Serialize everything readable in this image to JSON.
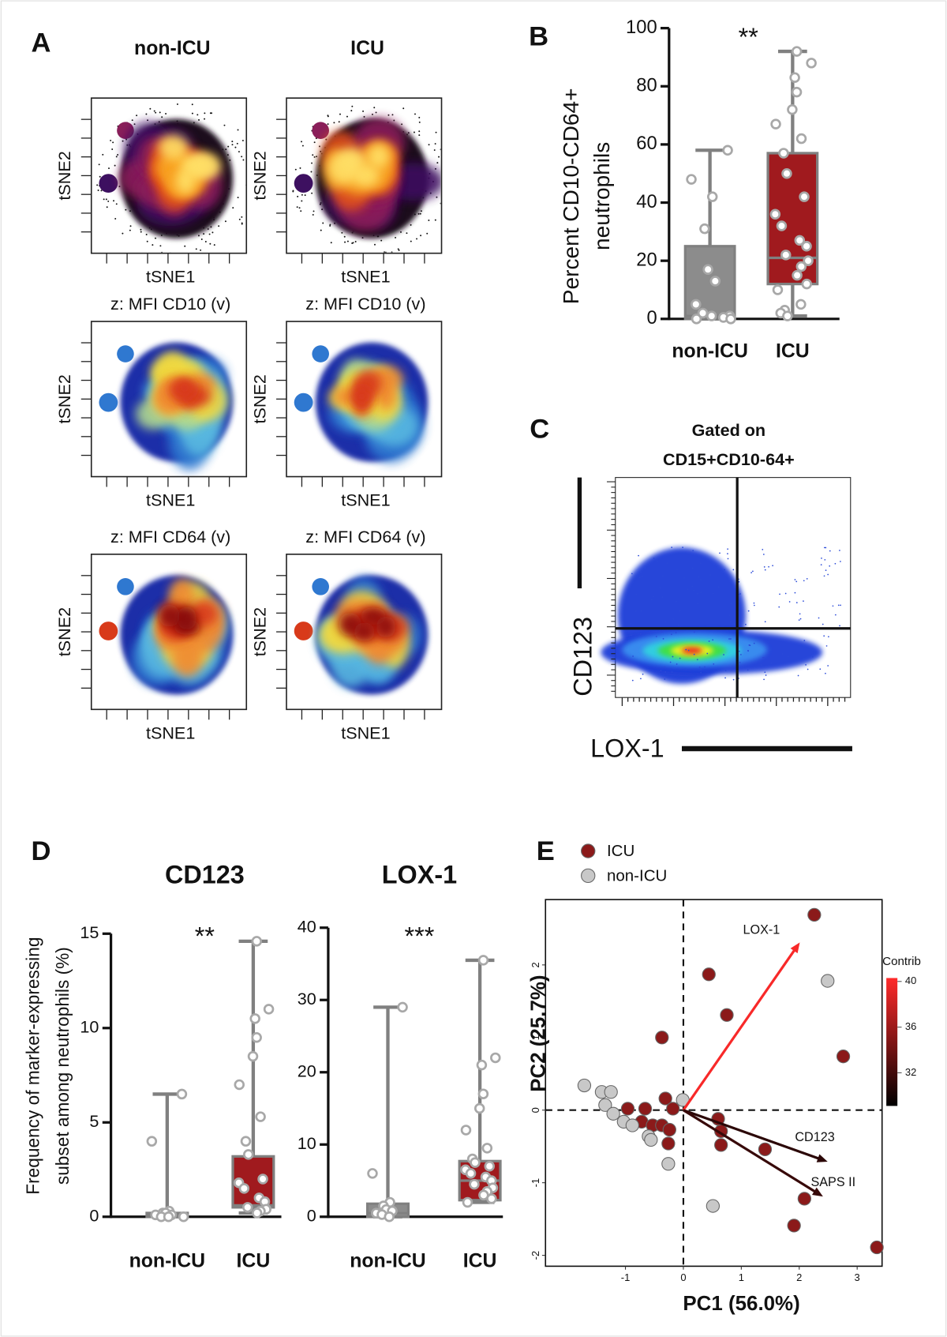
{
  "tsne": {
    "panel": "A",
    "columns": [
      "non-ICU",
      "ICU"
    ],
    "subtitles": [
      "z: MFI CD10 (v)",
      "z: MFI CD64 (v)"
    ],
    "xlabel": "tSNE1",
    "ylabel": "tSNE2"
  },
  "flow": {
    "panel": "C",
    "gate": [
      "Gated on",
      "CD15+CD10-64+"
    ],
    "ylabel": "CD123",
    "xlabel": "LOX-1"
  },
  "chart_data": [
    {
      "type": "box",
      "panel": "B",
      "ylabel": [
        "Percent CD10-CD64+",
        "neutrophils"
      ],
      "annotation": "**",
      "ylim": [
        0,
        100
      ],
      "yticks": [
        0,
        20,
        40,
        60,
        80,
        100
      ],
      "groups": [
        {
          "name": "non-ICU",
          "color": "#8c8c8c",
          "min": 0,
          "q1": 0,
          "median": 1,
          "q3": 25,
          "max": 58,
          "points": [
            58,
            48,
            42,
            31,
            17,
            13,
            5,
            2,
            1,
            1,
            0.5,
            0,
            0
          ]
        },
        {
          "name": "ICU",
          "color": "#a01a1e",
          "min": 1,
          "q1": 12,
          "median": 21,
          "q3": 57,
          "max": 92,
          "points": [
            92,
            88,
            83,
            78,
            72,
            67,
            62,
            57,
            50,
            42,
            36,
            32,
            27,
            25,
            22,
            20,
            18,
            15,
            12,
            10,
            5,
            3,
            2,
            1
          ]
        }
      ]
    },
    {
      "type": "box",
      "panel": "D",
      "title": "CD123",
      "ylabel": [
        "Frequency of marker-expressing",
        "subset among neutrophils (%)"
      ],
      "annotation": "**",
      "ylim": [
        0,
        15
      ],
      "yticks": [
        0,
        5,
        10,
        15
      ],
      "groups": [
        {
          "name": "non-ICU",
          "color": "#8c8c8c",
          "min": 0,
          "q1": 0,
          "median": 0.1,
          "q3": 0.2,
          "max": 6.5,
          "points": [
            6.5,
            4,
            0.3,
            0.2,
            0.2,
            0.1,
            0.1,
            0,
            0,
            0
          ]
        },
        {
          "name": "ICU",
          "color": "#a01a1e",
          "min": 0.2,
          "q1": 0.5,
          "median": 0.6,
          "q3": 3.2,
          "max": 14.6,
          "points": [
            14.6,
            11,
            10.5,
            9.5,
            8.5,
            7,
            5.3,
            4,
            3.3,
            2,
            1.8,
            1.5,
            1,
            0.8,
            0.5,
            0.4,
            0.3,
            0.2
          ]
        }
      ]
    },
    {
      "type": "box",
      "title": "LOX-1",
      "annotation": "***",
      "ylim": [
        0,
        40
      ],
      "yticks": [
        0,
        10,
        20,
        30,
        40
      ],
      "groups": [
        {
          "name": "non-ICU",
          "color": "#8c8c8c",
          "min": 0,
          "q1": 0,
          "median": 0.5,
          "q3": 1.8,
          "max": 29,
          "points": [
            29,
            6,
            2,
            1.5,
            1,
            0.8,
            0.5,
            0.3,
            0
          ]
        },
        {
          "name": "ICU",
          "color": "#a01a1e",
          "min": 2,
          "q1": 2.3,
          "median": 5,
          "q3": 7.7,
          "max": 35.5,
          "points": [
            35.5,
            22,
            21,
            17,
            15,
            12,
            9.5,
            8,
            7.5,
            7,
            6.5,
            6,
            5.5,
            5,
            4.5,
            4,
            3.5,
            3,
            2.5,
            2
          ]
        }
      ]
    },
    {
      "type": "scatter",
      "panel": "E",
      "xlabel": "PC1 (56.0%)",
      "ylabel": "PC2 (25.7%)",
      "xlim": [
        -2.38,
        3.43
      ],
      "ylim": [
        -2.15,
        2.9
      ],
      "xticks": [
        -1,
        0,
        1,
        2,
        3
      ],
      "yticks": [
        -2,
        -1,
        0,
        1,
        2
      ],
      "series": [
        {
          "name": "ICU",
          "color": "#8b1a1a",
          "x": [
            2.26,
            0.44,
            0.75,
            -0.37,
            2.76,
            -0.31,
            -0.18,
            -0.96,
            -0.66,
            -0.72,
            -0.53,
            -0.37,
            -0.24,
            -0.26,
            0.6,
            0.65,
            0.65,
            1.41,
            2.09,
            1.91,
            3.34
          ],
          "y": [
            2.69,
            1.87,
            1.31,
            1.0,
            0.74,
            0.16,
            0.02,
            0.02,
            0.02,
            -0.16,
            -0.21,
            -0.21,
            -0.27,
            -0.46,
            -0.12,
            -0.29,
            -0.48,
            -0.54,
            -1.22,
            -1.59,
            -1.89
          ]
        },
        {
          "name": "non-ICU",
          "color": "#c8c8c8",
          "x": [
            -1.71,
            -1.41,
            -1.25,
            -1.35,
            -1.21,
            -1.03,
            -0.88,
            -0.6,
            -0.56,
            -0.26,
            -0.01,
            0.51,
            2.49
          ],
          "y": [
            0.34,
            0.25,
            0.25,
            0.07,
            -0.05,
            -0.16,
            -0.21,
            -0.36,
            -0.41,
            -0.74,
            0.14,
            -1.32,
            1.78
          ]
        }
      ],
      "arrows": [
        {
          "name": "LOX-1",
          "x": 2.01,
          "y": 2.31,
          "contrib": 40
        },
        {
          "name": "CD123",
          "x": 2.49,
          "y": -0.71,
          "contrib": 31
        },
        {
          "name": "SAPS II",
          "x": 2.41,
          "y": -1.19,
          "contrib": 31.5
        }
      ],
      "colorbar": {
        "title": "Contrib",
        "lim": [
          29.1,
          40.3
        ],
        "ticks": [
          32,
          36,
          40
        ],
        "colors": [
          "#000000",
          "#ff2a2a"
        ]
      }
    }
  ]
}
